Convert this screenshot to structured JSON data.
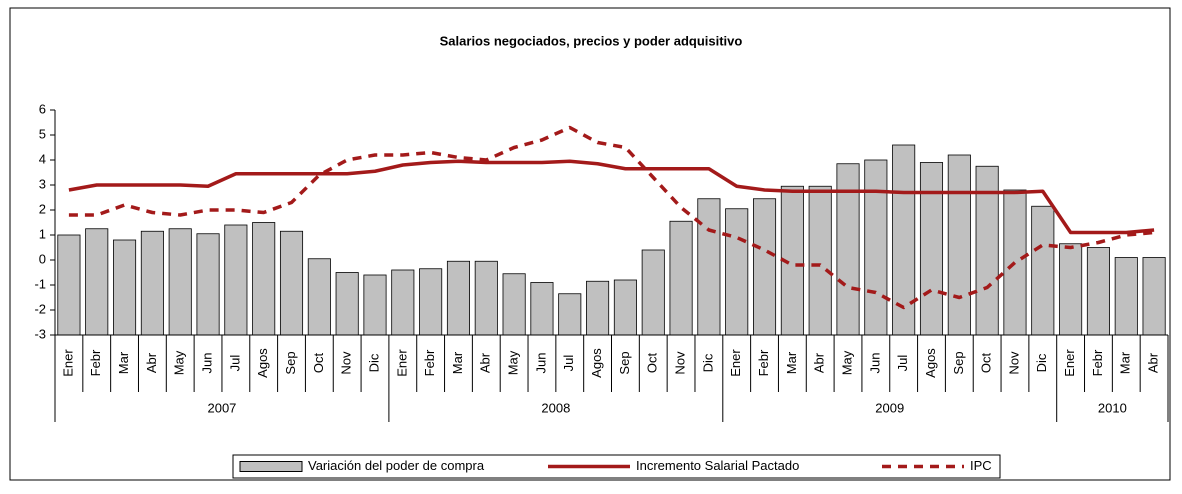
{
  "chart_data": {
    "type": "bar_line",
    "title": "Salarios negociados,  precios y poder adquisitivo",
    "categories": [
      "Ener",
      "Febr",
      "Mar",
      "Abr",
      "May",
      "Jun",
      "Jul",
      "Agos",
      "Sep",
      "Oct",
      "Nov",
      "Dic",
      "Ener",
      "Febr",
      "Mar",
      "Abr",
      "May",
      "Jun",
      "Jul",
      "Agos",
      "Sep",
      "Oct",
      "Nov",
      "Dic",
      "Ener",
      "Febr",
      "Mar",
      "Abr",
      "May",
      "Jun",
      "Jul",
      "Agos",
      "Sep",
      "Oct",
      "Nov",
      "Dic",
      "Ener",
      "Febr",
      "Mar",
      "Abr"
    ],
    "category_groups": [
      {
        "label": "2007",
        "size": 12
      },
      {
        "label": "2008",
        "size": 12
      },
      {
        "label": "2009",
        "size": 12
      },
      {
        "label": "2010",
        "size": 4
      }
    ],
    "series": [
      {
        "name": "Variación del poder de compra",
        "kind": "bar",
        "color": "#c0c0c0",
        "values": [
          1.0,
          1.25,
          0.8,
          1.15,
          1.25,
          1.05,
          1.4,
          1.5,
          1.15,
          0.05,
          -0.5,
          -0.6,
          -0.4,
          -0.35,
          -0.05,
          -0.05,
          -0.55,
          -0.9,
          -1.35,
          -0.85,
          -0.8,
          0.4,
          1.55,
          2.45,
          2.05,
          2.45,
          2.95,
          2.95,
          3.85,
          4.0,
          4.6,
          3.9,
          4.2,
          3.75,
          2.8,
          2.15,
          0.65,
          0.5,
          0.1,
          0.1
        ]
      },
      {
        "name": "Incremento Salarial Pactado",
        "kind": "line",
        "color": "#a31a1a",
        "values": [
          2.8,
          3.0,
          3.0,
          3.0,
          3.0,
          2.95,
          3.45,
          3.45,
          3.45,
          3.45,
          3.45,
          3.55,
          3.8,
          3.9,
          3.95,
          3.9,
          3.9,
          3.9,
          3.95,
          3.85,
          3.65,
          3.65,
          3.65,
          3.65,
          2.95,
          2.8,
          2.75,
          2.75,
          2.75,
          2.75,
          2.7,
          2.7,
          2.7,
          2.7,
          2.7,
          2.75,
          1.1,
          1.1,
          1.1,
          1.2
        ]
      },
      {
        "name": "IPC",
        "kind": "dashed",
        "color": "#a31a1a",
        "values": [
          1.8,
          1.8,
          2.2,
          1.9,
          1.8,
          2.0,
          2.0,
          1.9,
          2.3,
          3.4,
          4.0,
          4.2,
          4.2,
          4.3,
          4.1,
          4.0,
          4.5,
          4.8,
          5.3,
          4.7,
          4.5,
          3.3,
          2.1,
          1.2,
          0.9,
          0.4,
          -0.2,
          -0.2,
          -1.1,
          -1.3,
          -1.9,
          -1.2,
          -1.5,
          -1.1,
          -0.1,
          0.6,
          0.5,
          0.7,
          1.0,
          1.1
        ]
      }
    ],
    "ylim": [
      -3,
      6
    ],
    "yticks": [
      -3,
      -2,
      -1,
      0,
      1,
      2,
      3,
      4,
      5,
      6
    ],
    "legend": "bottom"
  }
}
